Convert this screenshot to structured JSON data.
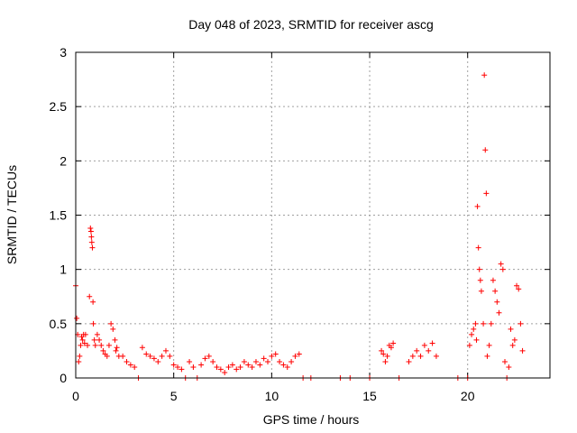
{
  "chart_data": {
    "type": "scatter",
    "title": "Day 048 of 2023, SRMTID for receiver ascg",
    "xlabel": "GPS time / hours",
    "ylabel": "SRMTID / TECUs",
    "xlim": [
      0,
      24.2
    ],
    "ylim": [
      0,
      3
    ],
    "xticks": [
      0,
      5,
      10,
      15,
      20
    ],
    "yticks": [
      0,
      0.5,
      1,
      1.5,
      2,
      2.5,
      3
    ],
    "grid": true,
    "marker": "+",
    "color": "#ff0000",
    "series": [
      {
        "name": "SRMTID",
        "x": [
          0.0,
          0.05,
          0.1,
          0.15,
          0.2,
          0.25,
          0.3,
          0.35,
          0.4,
          0.45,
          0.5,
          0.6,
          0.7,
          0.75,
          0.78,
          0.8,
          0.82,
          0.85,
          0.88,
          0.9,
          0.95,
          1.0,
          1.1,
          1.2,
          1.3,
          1.4,
          1.5,
          1.6,
          1.7,
          1.8,
          1.9,
          2.0,
          2.05,
          2.1,
          2.2,
          2.4,
          2.6,
          2.8,
          3.0,
          3.2,
          3.4,
          3.6,
          3.8,
          4.0,
          4.2,
          4.4,
          4.6,
          4.8,
          5.0,
          5.2,
          5.4,
          5.6,
          5.8,
          6.0,
          6.2,
          6.4,
          6.6,
          6.8,
          7.0,
          7.2,
          7.4,
          7.6,
          7.8,
          8.0,
          8.2,
          8.4,
          8.6,
          8.8,
          9.0,
          9.2,
          9.4,
          9.6,
          9.8,
          10.0,
          10.2,
          10.4,
          10.6,
          10.8,
          11.0,
          11.2,
          11.4,
          11.6,
          12.0,
          13.5,
          14.0,
          15.0,
          15.6,
          15.7,
          15.8,
          15.9,
          16.0,
          16.1,
          16.2,
          16.5,
          17.0,
          17.2,
          17.4,
          17.6,
          17.8,
          18.0,
          18.2,
          18.4,
          19.5,
          20.0,
          20.1,
          20.2,
          20.3,
          20.4,
          20.45,
          20.5,
          20.55,
          20.6,
          20.65,
          20.7,
          20.8,
          20.85,
          20.9,
          20.95,
          21.0,
          21.1,
          21.2,
          21.3,
          21.4,
          21.5,
          21.6,
          21.7,
          21.8,
          21.9,
          22.0,
          22.1,
          22.2,
          22.3,
          22.4,
          22.5,
          22.6,
          22.7,
          22.8
        ],
        "y": [
          0.85,
          0.55,
          0.4,
          0.15,
          0.2,
          0.3,
          0.38,
          0.35,
          0.4,
          0.32,
          0.4,
          0.3,
          0.75,
          1.38,
          1.35,
          1.3,
          1.25,
          1.2,
          0.7,
          0.5,
          0.35,
          0.3,
          0.4,
          0.35,
          0.3,
          0.25,
          0.22,
          0.2,
          0.3,
          0.5,
          0.45,
          0.35,
          0.25,
          0.28,
          0.2,
          0.2,
          0.15,
          0.12,
          0.1,
          0.0,
          0.28,
          0.22,
          0.2,
          0.18,
          0.15,
          0.2,
          0.25,
          0.2,
          0.12,
          0.1,
          0.08,
          0.0,
          0.15,
          0.1,
          0.0,
          0.12,
          0.18,
          0.2,
          0.15,
          0.1,
          0.08,
          0.05,
          0.1,
          0.12,
          0.08,
          0.1,
          0.15,
          0.12,
          0.1,
          0.15,
          0.12,
          0.18,
          0.15,
          0.2,
          0.22,
          0.15,
          0.12,
          0.1,
          0.15,
          0.2,
          0.22,
          0.0,
          0.0,
          0.0,
          0.0,
          0.0,
          0.25,
          0.22,
          0.15,
          0.2,
          0.3,
          0.28,
          0.32,
          0.0,
          0.15,
          0.2,
          0.25,
          0.2,
          0.3,
          0.25,
          0.32,
          0.2,
          0.0,
          0.0,
          0.3,
          0.4,
          0.45,
          0.5,
          0.35,
          1.58,
          1.2,
          1.0,
          0.9,
          0.8,
          0.5,
          2.79,
          2.1,
          1.7,
          0.2,
          0.3,
          0.5,
          0.9,
          0.8,
          0.7,
          0.6,
          1.05,
          1.0,
          0.15,
          0.0,
          0.1,
          0.45,
          0.3,
          0.35,
          0.85,
          0.82,
          0.5,
          0.25
        ]
      }
    ]
  }
}
